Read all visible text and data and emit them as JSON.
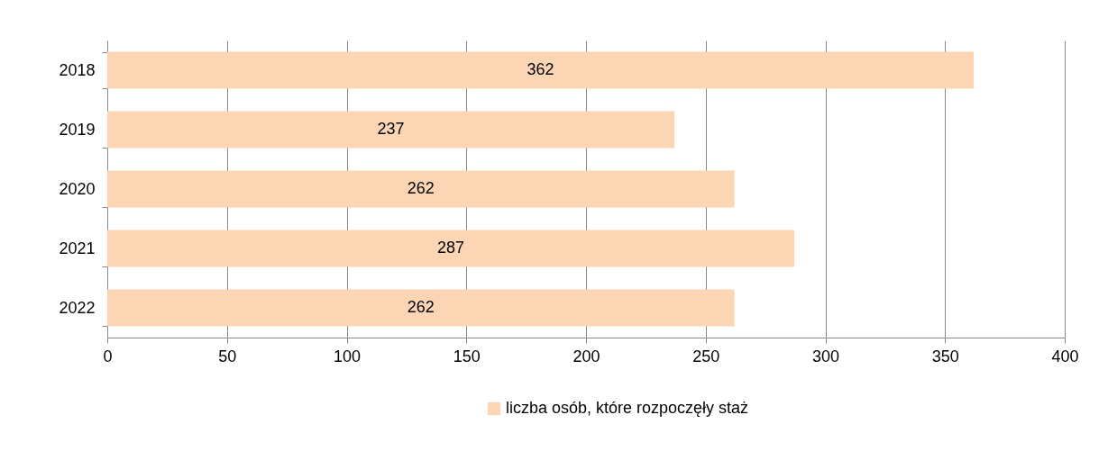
{
  "chart_data": {
    "type": "bar",
    "orientation": "horizontal",
    "categories": [
      "2018",
      "2019",
      "2020",
      "2021",
      "2022"
    ],
    "series": [
      {
        "name": "liczba osób, które rozpoczęły staż",
        "color": "#fcd5b5",
        "values": [
          362,
          237,
          262,
          287,
          262
        ]
      }
    ],
    "xlim": [
      0,
      400
    ],
    "xticks": [
      0,
      50,
      100,
      150,
      200,
      250,
      300,
      350,
      400
    ],
    "grid": "x",
    "data_labels": true,
    "legend": "bottom"
  }
}
